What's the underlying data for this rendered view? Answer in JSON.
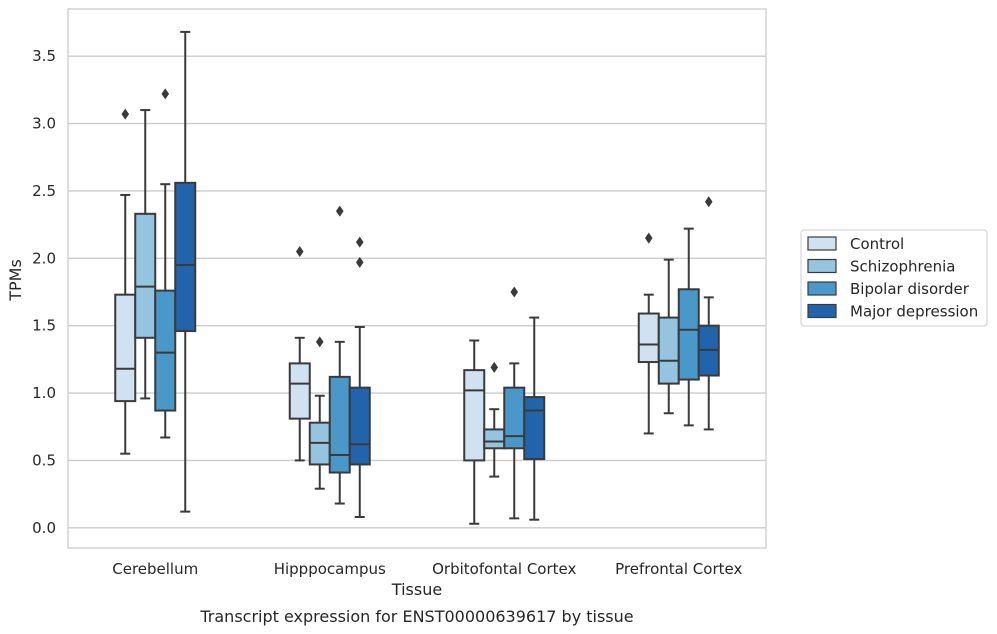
{
  "chart_data": {
    "type": "box",
    "xlabel": "Tissue",
    "ylabel": "TPMs",
    "caption": "Transcript expression for ENST00000639617 by tissue",
    "ylim": [
      -0.15,
      3.85
    ],
    "yticks": [
      "0.0",
      "0.5",
      "1.0",
      "1.5",
      "2.0",
      "2.5",
      "3.0",
      "3.5"
    ],
    "grid": "horizontal",
    "legend_position": "right",
    "categories": [
      "Cerebellum",
      "Hipppocampus",
      "Orbitofontal Cortex",
      "Prefrontal Cortex"
    ],
    "series": [
      {
        "name": "Control",
        "color": "#d0e1f2",
        "boxes": [
          {
            "whisker_low": 0.55,
            "q1": 0.94,
            "median": 1.18,
            "q3": 1.73,
            "whisker_high": 2.47,
            "outliers": [
              3.07
            ]
          },
          {
            "whisker_low": 0.5,
            "q1": 0.81,
            "median": 1.07,
            "q3": 1.22,
            "whisker_high": 1.41,
            "outliers": [
              2.05
            ]
          },
          {
            "whisker_low": 0.03,
            "q1": 0.5,
            "median": 1.02,
            "q3": 1.17,
            "whisker_high": 1.39,
            "outliers": []
          },
          {
            "whisker_low": 0.7,
            "q1": 1.23,
            "median": 1.36,
            "q3": 1.59,
            "whisker_high": 1.73,
            "outliers": [
              2.15
            ]
          }
        ]
      },
      {
        "name": "Schizophrenia",
        "color": "#94c4df",
        "boxes": [
          {
            "whisker_low": 0.96,
            "q1": 1.41,
            "median": 1.79,
            "q3": 2.33,
            "whisker_high": 3.1,
            "outliers": []
          },
          {
            "whisker_low": 0.29,
            "q1": 0.47,
            "median": 0.63,
            "q3": 0.78,
            "whisker_high": 0.98,
            "outliers": [
              1.38
            ]
          },
          {
            "whisker_low": 0.38,
            "q1": 0.59,
            "median": 0.64,
            "q3": 0.73,
            "whisker_high": 0.88,
            "outliers": [
              1.19
            ]
          },
          {
            "whisker_low": 0.85,
            "q1": 1.07,
            "median": 1.24,
            "q3": 1.56,
            "whisker_high": 1.99,
            "outliers": []
          }
        ]
      },
      {
        "name": "Bipolar disorder",
        "color": "#4a98c9",
        "boxes": [
          {
            "whisker_low": 0.67,
            "q1": 0.87,
            "median": 1.3,
            "q3": 1.76,
            "whisker_high": 2.55,
            "outliers": [
              3.22
            ]
          },
          {
            "whisker_low": 0.18,
            "q1": 0.41,
            "median": 0.54,
            "q3": 1.12,
            "whisker_high": 1.38,
            "outliers": [
              2.35
            ]
          },
          {
            "whisker_low": 0.07,
            "q1": 0.59,
            "median": 0.68,
            "q3": 1.04,
            "whisker_high": 1.22,
            "outliers": [
              1.75
            ]
          },
          {
            "whisker_low": 0.76,
            "q1": 1.1,
            "median": 1.47,
            "q3": 1.77,
            "whisker_high": 2.22,
            "outliers": []
          }
        ]
      },
      {
        "name": "Major depression",
        "color": "#2164ab",
        "boxes": [
          {
            "whisker_low": 0.12,
            "q1": 1.46,
            "median": 1.95,
            "q3": 2.56,
            "whisker_high": 3.68,
            "outliers": []
          },
          {
            "whisker_low": 0.08,
            "q1": 0.47,
            "median": 0.62,
            "q3": 1.04,
            "whisker_high": 1.49,
            "outliers": [
              2.12,
              1.97
            ]
          },
          {
            "whisker_low": 0.06,
            "q1": 0.51,
            "median": 0.87,
            "q3": 0.97,
            "whisker_high": 1.56,
            "outliers": []
          },
          {
            "whisker_low": 0.73,
            "q1": 1.13,
            "median": 1.32,
            "q3": 1.5,
            "whisker_high": 1.71,
            "outliers": [
              2.42
            ]
          }
        ]
      }
    ]
  }
}
